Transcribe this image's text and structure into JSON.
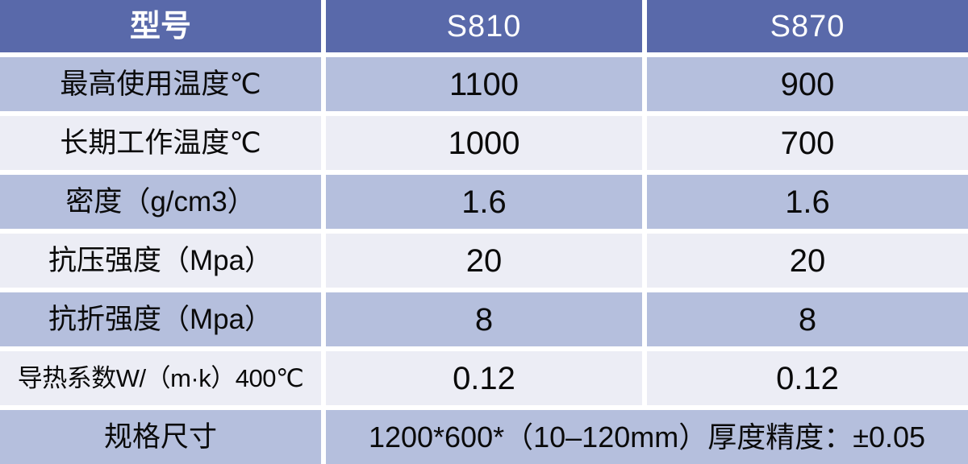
{
  "colors": {
    "header_bg": "#5969aa",
    "header_text": "#ffffff",
    "row_periwinkle": "#b5bfdd",
    "row_light": "#ecedf5",
    "gap_color": "#ffffff",
    "body_text": "#0a0a0a"
  },
  "table": {
    "header": {
      "model_label": "型号",
      "model_s810": "S810",
      "model_s870": "S870"
    },
    "rows": [
      {
        "label": "最高使用温度℃",
        "s810": "1100",
        "s870": "900"
      },
      {
        "label": "长期工作温度℃",
        "s810": "1000",
        "s870": "700"
      },
      {
        "label": "密度（g/cm3）",
        "s810": "1.6",
        "s870": "1.6"
      },
      {
        "label": "抗压强度（Mpa）",
        "s810": "20",
        "s870": "20"
      },
      {
        "label": "抗折强度（Mpa）",
        "s810": "8",
        "s870": "8"
      },
      {
        "label": "导热系数W/（m·k）400℃",
        "s810": "0.12",
        "s870": "0.12"
      }
    ],
    "spec_row": {
      "label": "规格尺寸",
      "value": "1200*600*（10–120mm）厚度精度：±0.05"
    }
  },
  "chart_data": {
    "type": "table",
    "title": "",
    "columns": [
      "型号",
      "S810",
      "S870"
    ],
    "cells": [
      [
        "最高使用温度℃",
        "1100",
        "900"
      ],
      [
        "长期工作温度℃",
        "1000",
        "700"
      ],
      [
        "密度（g/cm3）",
        "1.6",
        "1.6"
      ],
      [
        "抗压强度（Mpa）",
        "20",
        "20"
      ],
      [
        "抗折强度（Mpa）",
        "8",
        "8"
      ],
      [
        "导热系数W/（m·k）400℃",
        "0.12",
        "0.12"
      ],
      [
        "规格尺寸",
        "1200*600*（10–120mm）厚度精度：±0.05",
        ""
      ]
    ]
  }
}
